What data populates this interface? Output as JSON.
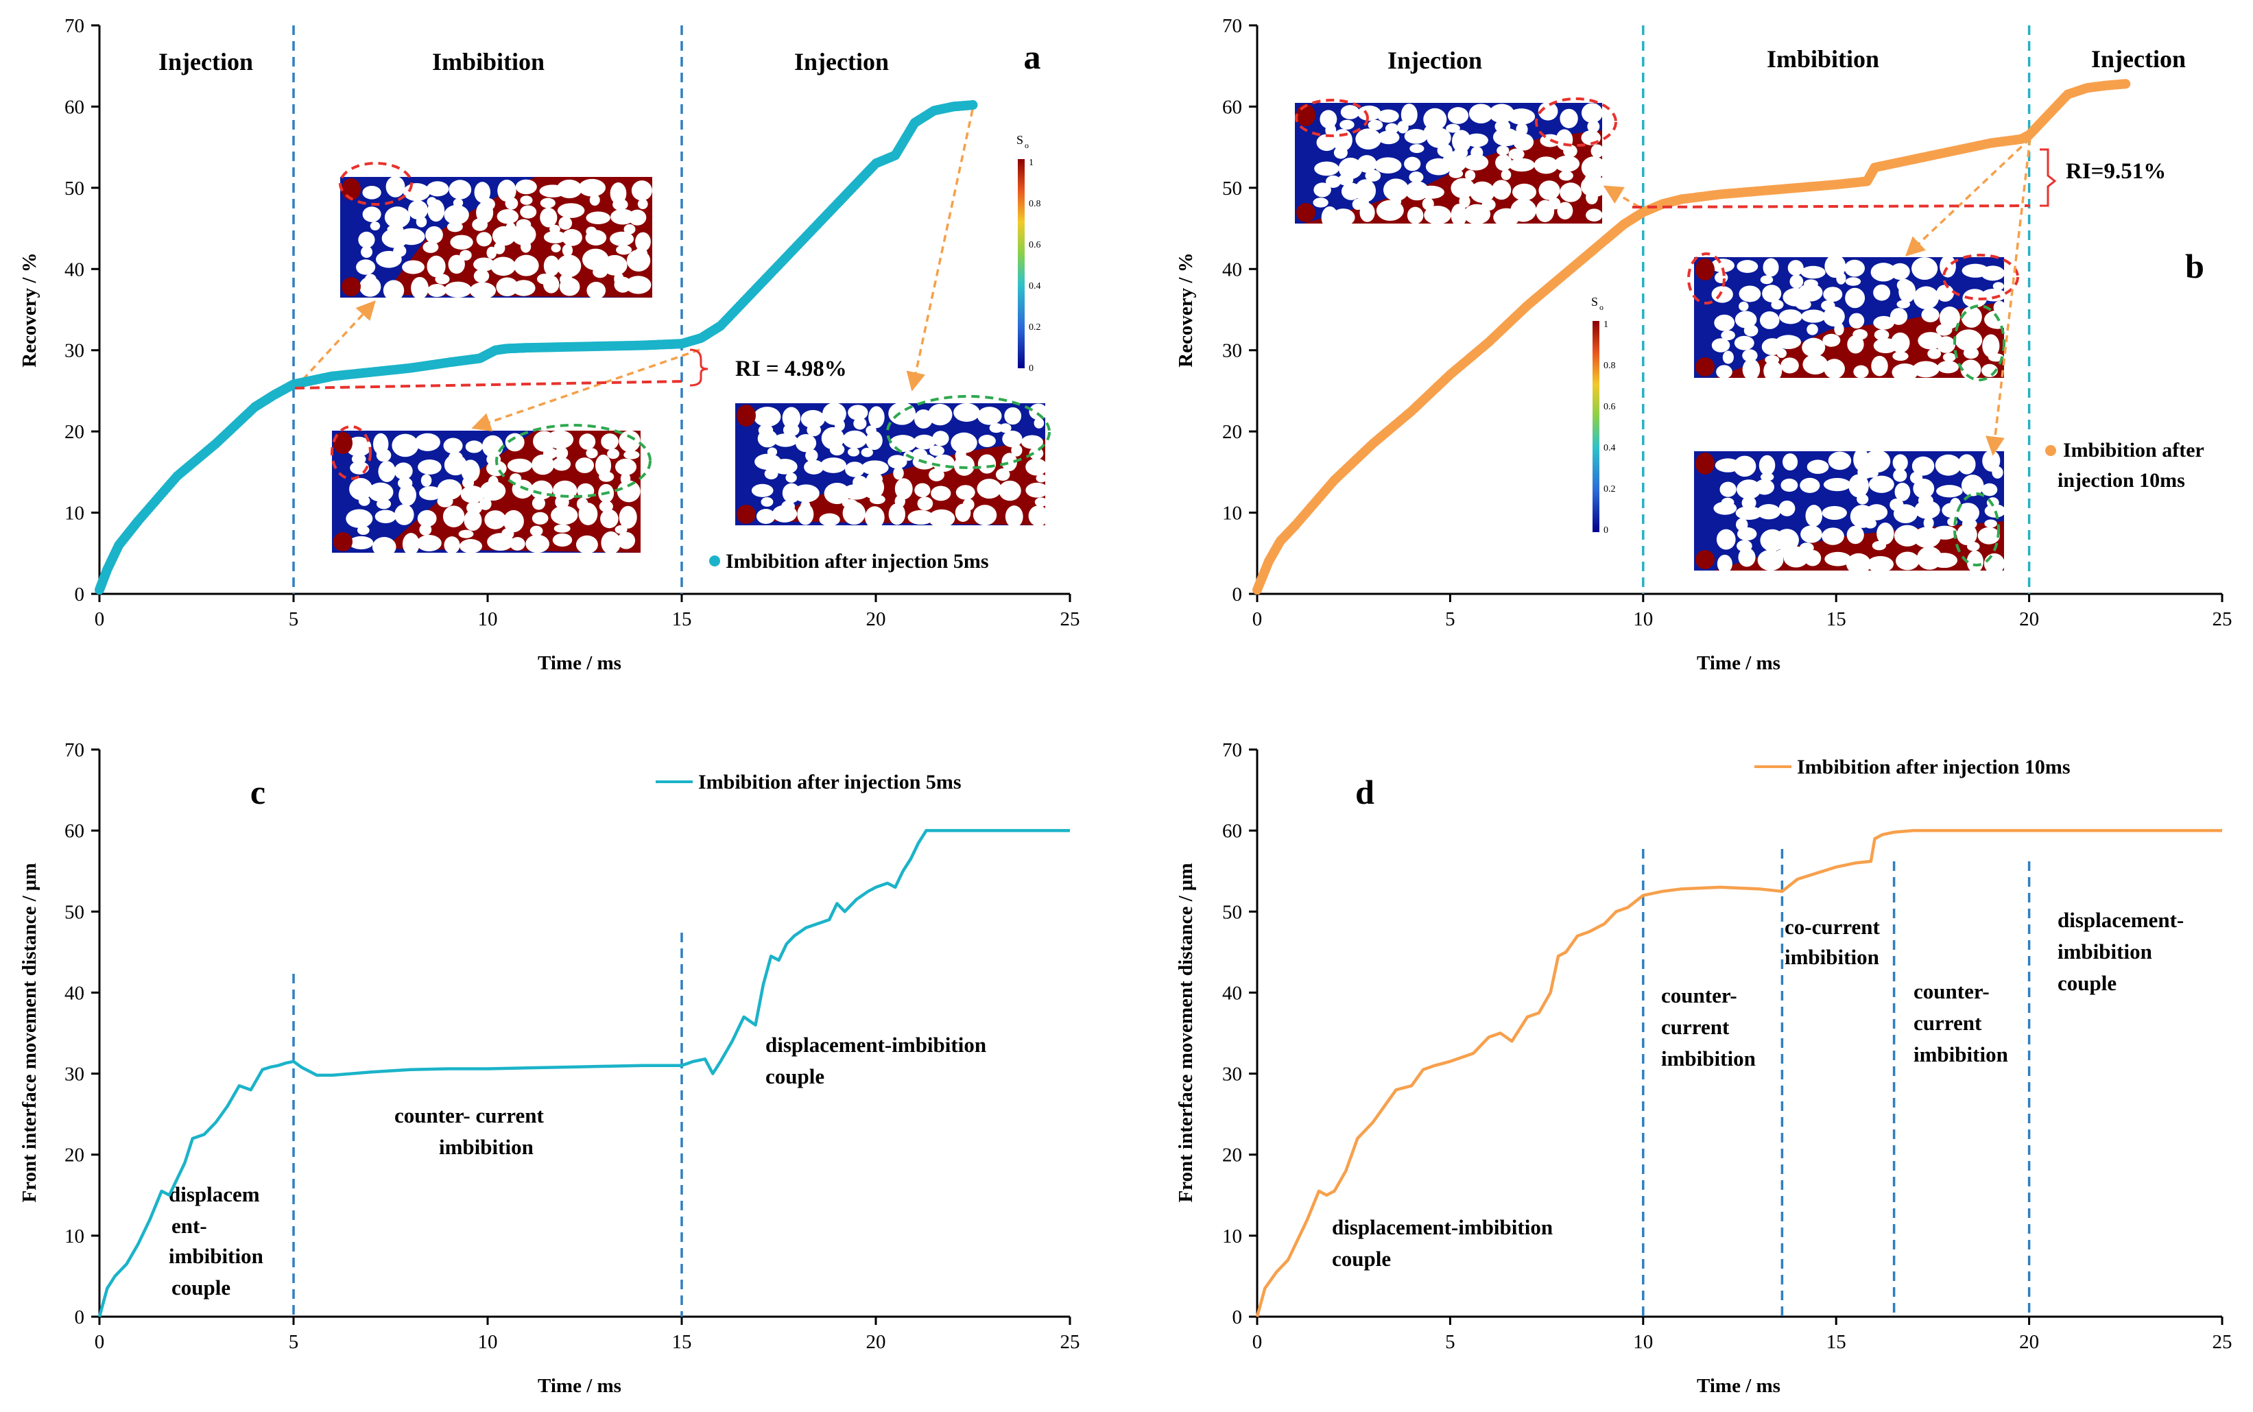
{
  "colors": {
    "teal": "#1bb3c9",
    "orange": "#f7a04c",
    "dashBlue": "#2f7fc0",
    "dashTeal": "#27b0c4",
    "red": "#e8322d",
    "green": "#2fa84f",
    "arrow": "#f5a04a",
    "dark": "#00008b",
    "brown": "#8b0000"
  },
  "chart_data": [
    {
      "id": "a",
      "type": "scatter",
      "panel_label": "a",
      "xlabel": "Time / ms",
      "ylabel": "Recovery / %",
      "xlim": [
        0,
        25
      ],
      "ylim": [
        0,
        70
      ],
      "xticks": [
        "0",
        "5",
        "10",
        "15",
        "20",
        "25"
      ],
      "yticks": [
        "0",
        "10",
        "20",
        "30",
        "40",
        "50",
        "60",
        "70"
      ],
      "phases": [
        "Injection",
        "Imbibition",
        "Injection"
      ],
      "phase_boundaries": [
        5,
        15
      ],
      "series": [
        {
          "name": "Imbibition after injection 5ms",
          "color": "#1bb3c9",
          "x": [
            0,
            0.2,
            0.5,
            1,
            2,
            3,
            4,
            4.5,
            5,
            5.5,
            6,
            7,
            8,
            9,
            9.8,
            10.2,
            10.5,
            11,
            12,
            13,
            14,
            14.5,
            15,
            15.5,
            16,
            17,
            18,
            19,
            20,
            20.5,
            21,
            21.5,
            22,
            22.5
          ],
          "y": [
            0.5,
            3,
            6,
            9,
            14.5,
            18.5,
            23,
            24.5,
            25.8,
            26.3,
            26.8,
            27.3,
            27.8,
            28.5,
            29,
            30,
            30.2,
            30.3,
            30.4,
            30.5,
            30.6,
            30.7,
            30.8,
            31.5,
            33,
            38,
            43,
            48,
            53,
            54,
            58,
            59.5,
            60,
            60.2
          ]
        }
      ],
      "annotations": {
        "ri": "RI = 4.98%",
        "ri_value": 4.98,
        "colorbar_title": "S",
        "colorbar_sub": "o",
        "colorbar_ticks": [
          "1",
          "0.8",
          "0.6",
          "0.4",
          "0.2",
          "0"
        ]
      }
    },
    {
      "id": "b",
      "type": "scatter",
      "panel_label": "b",
      "xlabel": "Time / ms",
      "ylabel": "Recovery / %",
      "xlim": [
        0,
        25
      ],
      "ylim": [
        0,
        70
      ],
      "xticks": [
        "0",
        "5",
        "10",
        "15",
        "20",
        "25"
      ],
      "yticks": [
        "0",
        "10",
        "20",
        "30",
        "40",
        "50",
        "60",
        "70"
      ],
      "phases": [
        "Injection",
        "Imbibition",
        "Injection"
      ],
      "phase_boundaries": [
        10,
        20
      ],
      "series": [
        {
          "name": "Imbibition after injection 10ms",
          "legend_lines": [
            "Imbibition after",
            "injection 10ms"
          ],
          "color": "#f7a04c",
          "x": [
            0,
            0.3,
            0.6,
            1,
            2,
            3,
            4,
            5,
            6,
            7,
            8,
            9,
            9.5,
            10,
            10.5,
            11,
            12,
            13,
            14,
            15,
            15.8,
            16,
            17,
            18,
            19,
            19.8,
            20,
            20.5,
            21,
            21.5,
            22,
            22.5
          ],
          "y": [
            0.5,
            4,
            6.5,
            8.5,
            14,
            18.5,
            22.5,
            27,
            31,
            35.5,
            39.5,
            43.5,
            45.5,
            47,
            48,
            48.6,
            49.2,
            49.6,
            50,
            50.4,
            50.8,
            52.5,
            53.5,
            54.5,
            55.5,
            56,
            56.5,
            59,
            61.5,
            62.3,
            62.6,
            62.8
          ]
        }
      ],
      "annotations": {
        "ri": "RI=9.51%",
        "ri_value": 9.51,
        "colorbar_title": "S",
        "colorbar_sub": "o",
        "colorbar_ticks": [
          "1",
          "0.8",
          "0.6",
          "0.4",
          "0.2",
          "0"
        ]
      }
    },
    {
      "id": "c",
      "type": "line",
      "panel_label": "c",
      "xlabel": "Time / ms",
      "ylabel": "Front interface movement distance / μm",
      "xlim": [
        0,
        25
      ],
      "ylim": [
        0,
        70
      ],
      "xticks": [
        "0",
        "5",
        "10",
        "15",
        "20",
        "25"
      ],
      "yticks": [
        "0",
        "10",
        "20",
        "30",
        "40",
        "50",
        "60",
        "70"
      ],
      "phase_boundaries": [
        5,
        15
      ],
      "series": [
        {
          "name": "Imbibition after injection 5ms",
          "color": "#1bb3c9",
          "x": [
            0,
            0.2,
            0.4,
            0.7,
            1,
            1.3,
            1.6,
            1.8,
            2,
            2.2,
            2.4,
            2.7,
            3,
            3.3,
            3.6,
            3.9,
            4.2,
            4.4,
            4.6,
            4.8,
            5,
            5.2,
            5.6,
            6,
            7,
            8,
            9,
            10,
            11,
            12,
            13,
            14,
            15,
            15.3,
            15.6,
            15.8,
            16,
            16.3,
            16.6,
            16.9,
            17.1,
            17.3,
            17.5,
            17.7,
            17.9,
            18.2,
            18.5,
            18.8,
            19,
            19.2,
            19.5,
            19.8,
            20,
            20.3,
            20.5,
            20.7,
            20.9,
            21.1,
            21.3,
            21.6,
            22,
            23,
            24,
            25
          ],
          "y": [
            0,
            3.5,
            5,
            6.5,
            9,
            12,
            15.5,
            15,
            17,
            19,
            22,
            22.5,
            24,
            26,
            28.5,
            28,
            30.5,
            30.8,
            31,
            31.3,
            31.5,
            30.8,
            29.8,
            29.8,
            30.2,
            30.5,
            30.6,
            30.6,
            30.7,
            30.8,
            30.9,
            31,
            31,
            31.5,
            31.8,
            30,
            31.5,
            34,
            37,
            36,
            41,
            44.5,
            44,
            46,
            47,
            48,
            48.5,
            49,
            51,
            50,
            51.5,
            52.5,
            53,
            53.5,
            53,
            55,
            56.5,
            58.5,
            60,
            60,
            60,
            60,
            60,
            60
          ]
        }
      ],
      "annotations": {
        "segment_labels": [
          "displacem",
          "ent-",
          "imbibition",
          "couple",
          "counter- current",
          "imbibition",
          "displacement-imbibition",
          "couple"
        ]
      }
    },
    {
      "id": "d",
      "type": "line",
      "panel_label": "d",
      "xlabel": "Time / ms",
      "ylabel": "Front interface movement distance / μm",
      "xlim": [
        0,
        25
      ],
      "ylim": [
        0,
        70
      ],
      "xticks": [
        "0",
        "5",
        "10",
        "15",
        "20",
        "25"
      ],
      "yticks": [
        "0",
        "10",
        "20",
        "30",
        "40",
        "50",
        "60",
        "70"
      ],
      "phase_boundaries": [
        10,
        13.6,
        16.5,
        20
      ],
      "series": [
        {
          "name": "Imbibition after injection 10ms",
          "color": "#f7a04c",
          "x": [
            0,
            0.2,
            0.5,
            0.8,
            1,
            1.3,
            1.6,
            1.8,
            2,
            2.3,
            2.6,
            3,
            3.3,
            3.6,
            4,
            4.3,
            4.6,
            5,
            5.3,
            5.6,
            6,
            6.3,
            6.6,
            7,
            7.3,
            7.6,
            7.8,
            8,
            8.3,
            8.6,
            9,
            9.3,
            9.6,
            10,
            10.5,
            11,
            12,
            13,
            13.6,
            14,
            15,
            15.5,
            15.9,
            16,
            16.2,
            16.5,
            17,
            18,
            19,
            20,
            21,
            22,
            23,
            24,
            25
          ],
          "y": [
            0,
            3.5,
            5.5,
            7,
            9,
            12,
            15.5,
            15,
            15.5,
            18,
            22,
            24,
            26,
            28,
            28.5,
            30.5,
            31,
            31.5,
            32,
            32.5,
            34.5,
            35,
            34,
            37,
            37.5,
            40,
            44.5,
            45,
            47,
            47.5,
            48.5,
            50,
            50.5,
            52,
            52.5,
            52.8,
            53,
            52.8,
            52.5,
            54,
            55.5,
            56,
            56.2,
            59,
            59.5,
            59.8,
            60,
            60,
            60,
            60,
            60,
            60,
            60,
            60,
            60
          ]
        }
      ],
      "annotations": {
        "segment_labels": [
          "displacement-imbibition",
          "couple",
          "counter-",
          "current",
          "imbibition",
          "co-current",
          "imbibition",
          "counter-",
          "current",
          "imbibition",
          "displacement-",
          "imbibition",
          "couple"
        ]
      }
    }
  ]
}
